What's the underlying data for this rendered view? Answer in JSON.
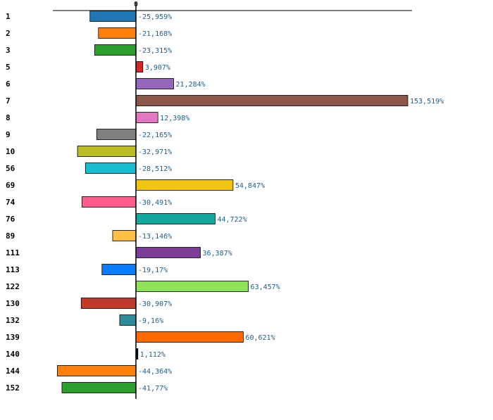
{
  "chart_data": {
    "type": "bar",
    "orientation": "horizontal",
    "title": "",
    "xlabel": "",
    "ylabel": "",
    "xlim": [
      -60,
      200
    ],
    "zero_tick_label": "0",
    "grid": false,
    "legend": false,
    "label_color": "#1f5f8b",
    "categories": [
      "1",
      "2",
      "3",
      "5",
      "6",
      "7",
      "8",
      "9",
      "10",
      "56",
      "69",
      "74",
      "76",
      "89",
      "111",
      "113",
      "122",
      "130",
      "132",
      "139",
      "140",
      "144",
      "152"
    ],
    "values": [
      -25.959,
      -21.168,
      -23.315,
      3.907,
      21.284,
      153.519,
      12.398,
      -22.165,
      -32.971,
      -28.512,
      54.847,
      -30.491,
      44.722,
      -13.146,
      36.387,
      -19.17,
      63.457,
      -30.907,
      -9.16,
      60.621,
      1.112,
      -44.364,
      -41.77
    ],
    "value_labels": [
      "-25,959%",
      "-21,168%",
      "-23,315%",
      "3,907%",
      "21,284%",
      "153,519%",
      "12,398%",
      "-22,165%",
      "-32,971%",
      "-28,512%",
      "54,847%",
      "-30,491%",
      "44,722%",
      "-13,146%",
      "36,387%",
      "-19,17%",
      "63,457%",
      "-30,907%",
      "-9,16%",
      "60,621%",
      "1,112%",
      "-44,364%",
      "-41,77%"
    ],
    "colors": [
      "#1f77b4",
      "#ff7f0e",
      "#2ca02c",
      "#d62728",
      "#9467bd",
      "#8c564b",
      "#e377c2",
      "#7f7f7f",
      "#bcbd22",
      "#17becf",
      "#f1c40f",
      "#ff5c8d",
      "#12a89d",
      "#ffbf47",
      "#7d3c98",
      "#0a7cff",
      "#8ee35b",
      "#c0392b",
      "#2e8b9a",
      "#ff6a00",
      "#111111",
      "#ff7f0e",
      "#2ca02c"
    ]
  }
}
